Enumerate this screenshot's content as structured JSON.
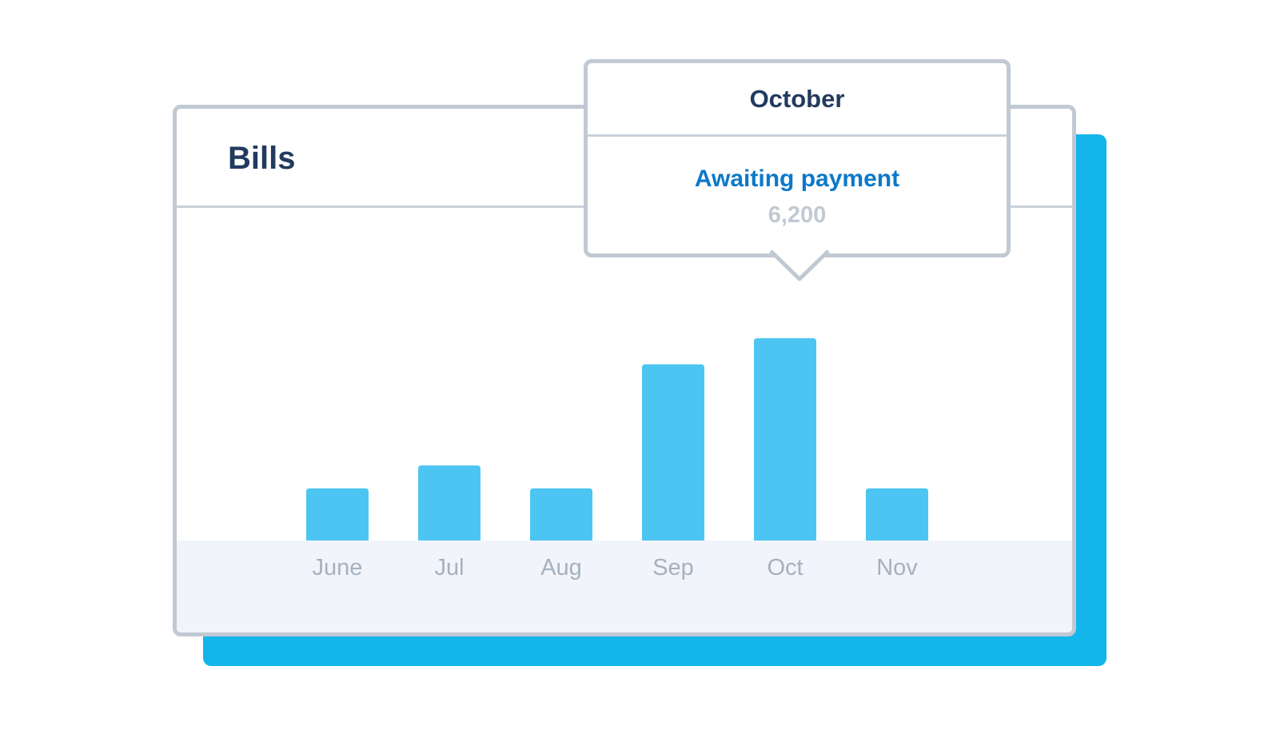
{
  "card": {
    "title": "Bills"
  },
  "tooltip": {
    "month": "October",
    "status": "Awaiting payment",
    "value": "6,200"
  },
  "colors": {
    "bar": "#4dc5f2",
    "shadow": "#13b5ea",
    "title": "#223a5e",
    "status": "#0b79c9",
    "axis_label": "#a6b1bf",
    "border": "#c1c9d3",
    "axis_band": "#f1f4fa"
  },
  "chart_data": {
    "type": "bar",
    "title": "Bills",
    "categories": [
      "June",
      "Jul",
      "Aug",
      "Sep",
      "Oct",
      "Nov"
    ],
    "series": [
      {
        "values": [
          1600,
          2300,
          1600,
          5400,
          6200,
          1600
        ]
      }
    ],
    "ylim": [
      0,
      6200
    ],
    "grid": false,
    "highlighted_category": "Oct"
  }
}
